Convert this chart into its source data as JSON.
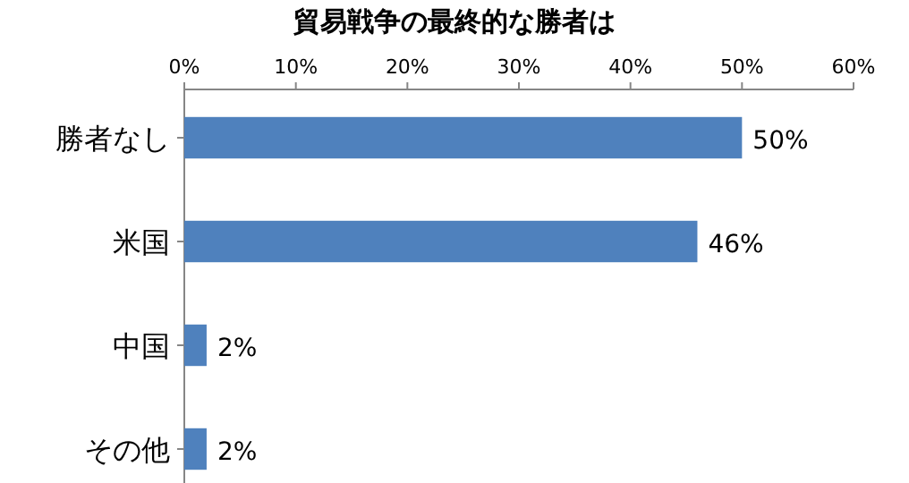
{
  "chart_data": {
    "type": "bar",
    "orientation": "horizontal",
    "title": "貿易戦争の最終的な勝者は",
    "categories": [
      "勝者なし",
      "米国",
      "中国",
      "その他"
    ],
    "values": [
      50,
      46,
      2,
      2
    ],
    "value_labels": [
      "50%",
      "46%",
      "2%",
      "2%"
    ],
    "color": "#4f81bd",
    "xlim": [
      0,
      60
    ],
    "xticks": [
      {
        "value": 0,
        "label": "0%"
      },
      {
        "value": 10,
        "label": "10%"
      },
      {
        "value": 20,
        "label": "20%"
      },
      {
        "value": 30,
        "label": "30%"
      },
      {
        "value": 40,
        "label": "40%"
      },
      {
        "value": 50,
        "label": "50%"
      },
      {
        "value": 60,
        "label": "60%"
      }
    ],
    "grid": false
  }
}
